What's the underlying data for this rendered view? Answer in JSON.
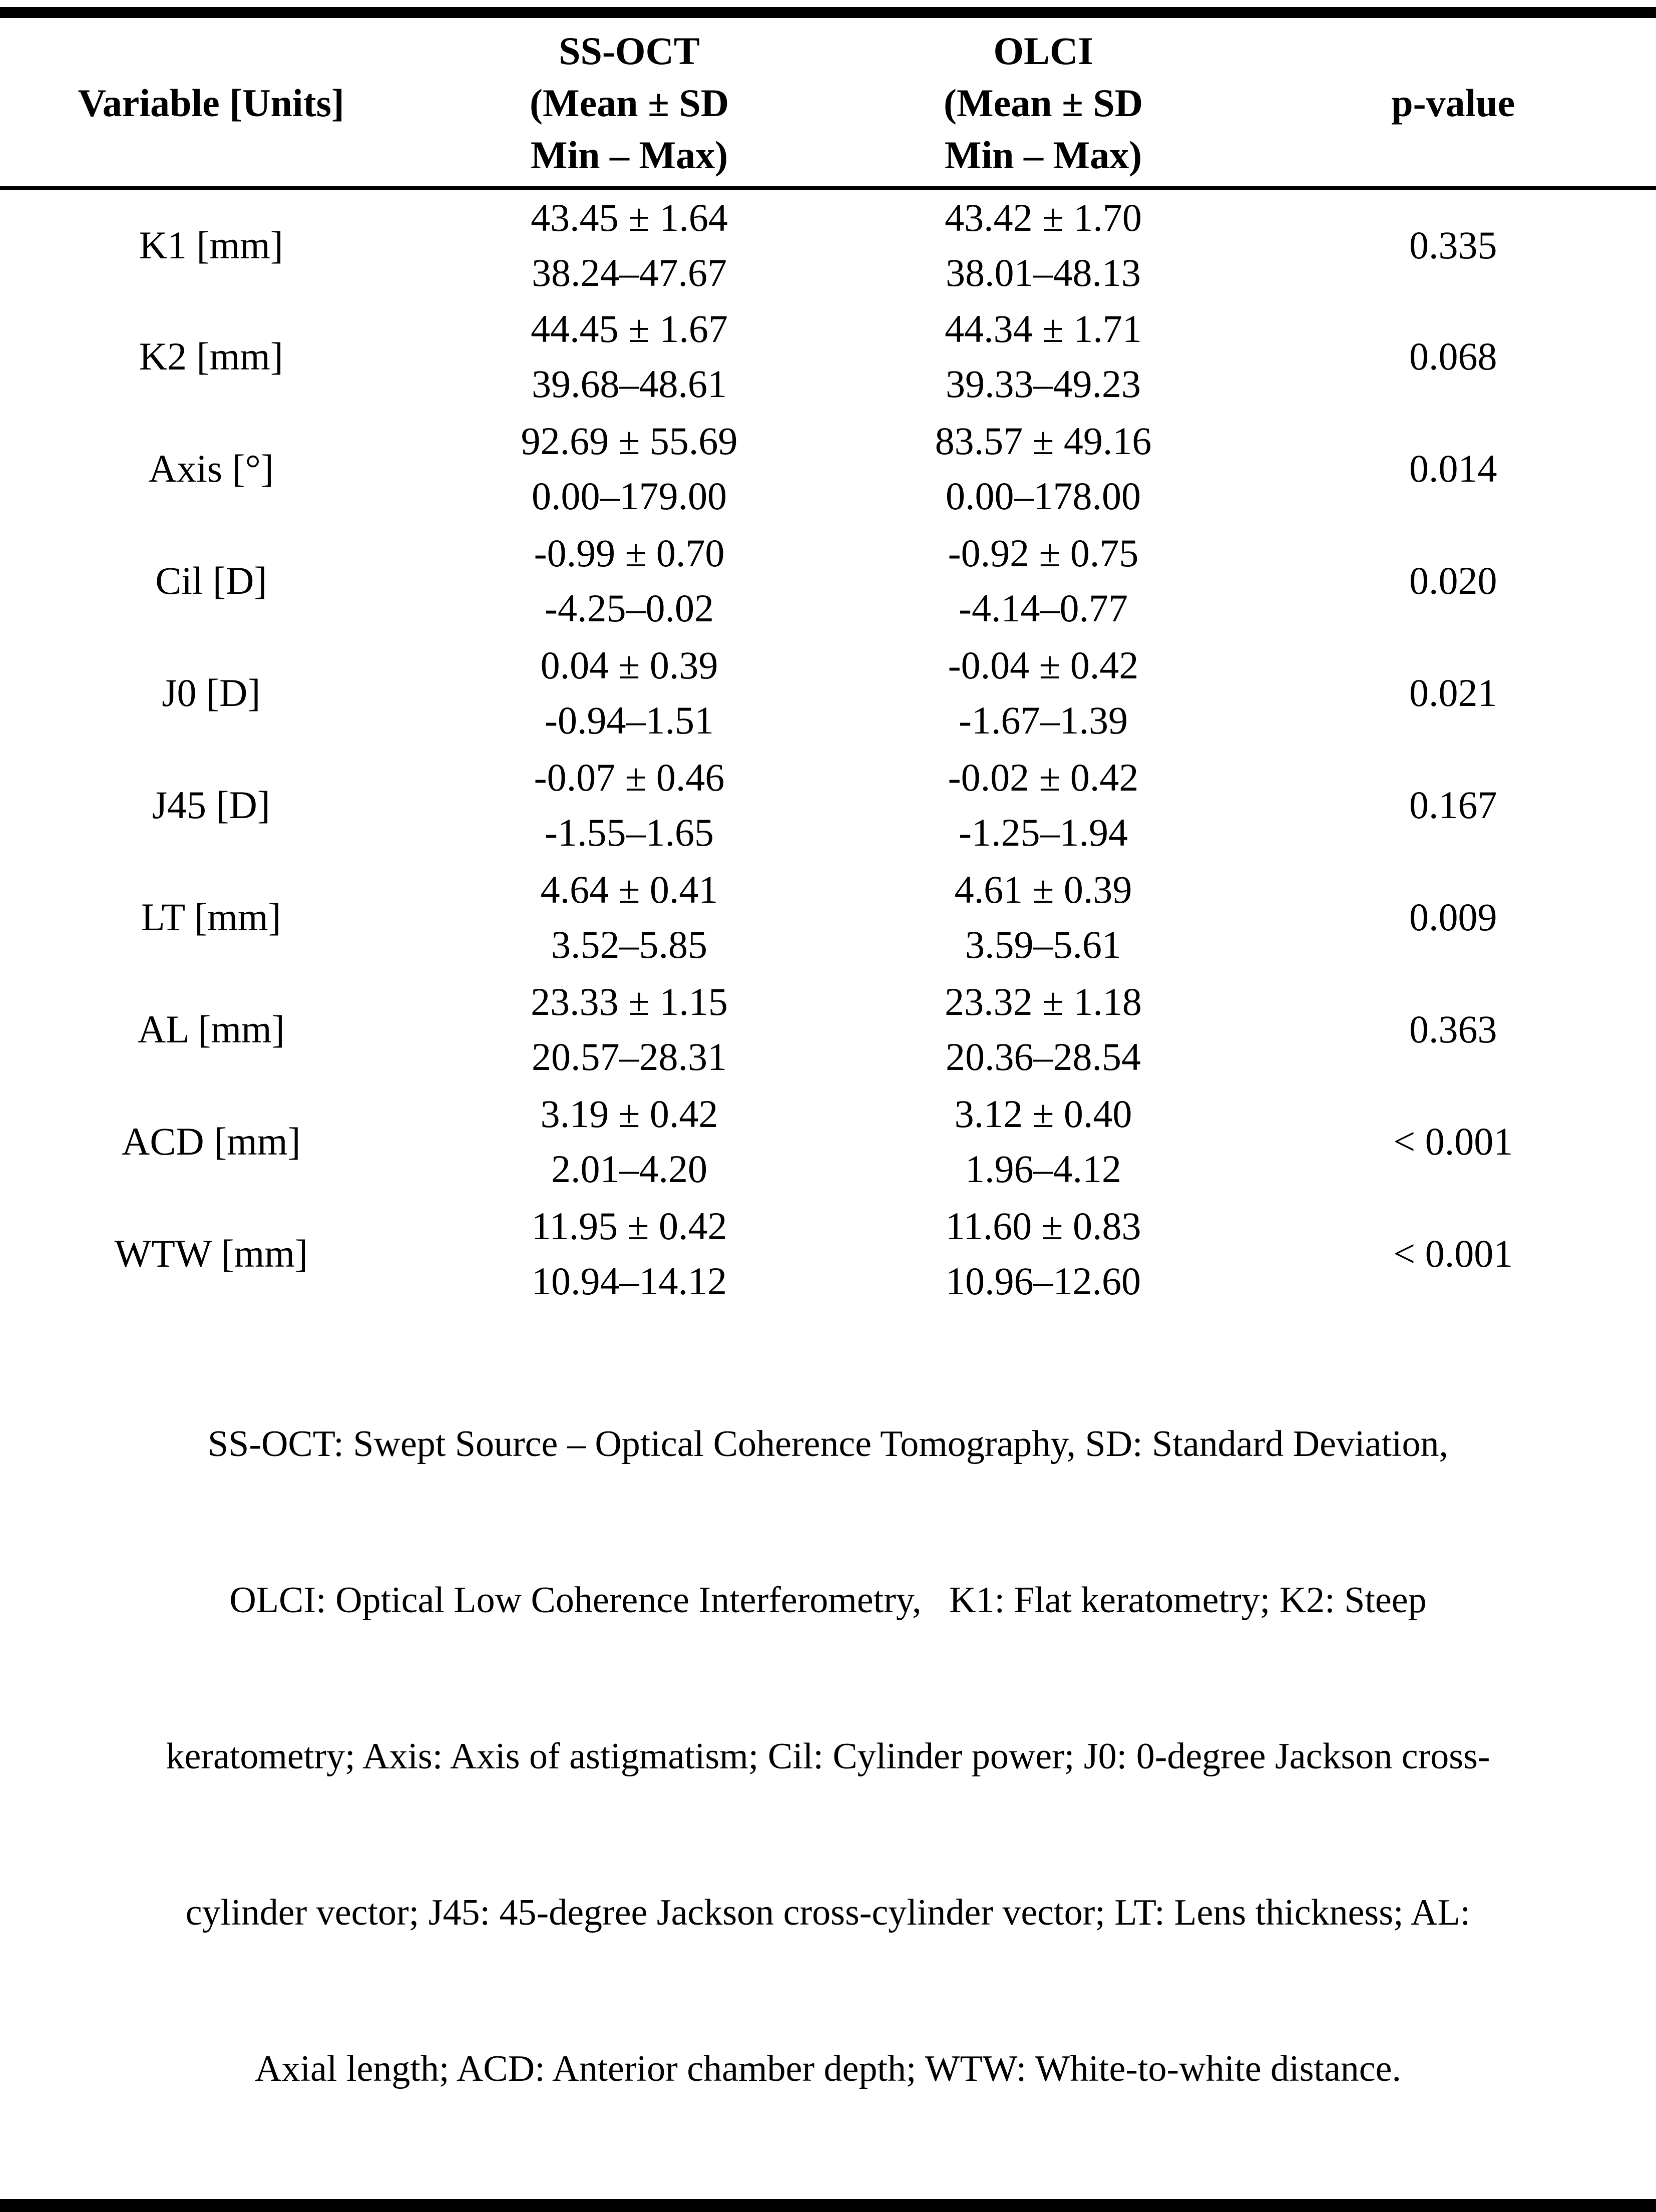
{
  "table": {
    "headers": {
      "variable": "Variable [Units]",
      "ss_oct_lines": [
        "SS-OCT",
        "(Mean ± SD",
        "Min – Max)"
      ],
      "olci_lines": [
        "OLCI",
        "(Mean ± SD",
        "Min – Max)"
      ],
      "p_value": "p-value"
    },
    "rows": [
      {
        "variable": "K1 [mm]",
        "ssoct_mean": "43.45 ± 1.64",
        "ssoct_range": "38.24–47.67",
        "olci_mean": "43.42 ± 1.70",
        "olci_range": "38.01–48.13",
        "p": "0.335"
      },
      {
        "variable": "K2 [mm]",
        "ssoct_mean": "44.45 ± 1.67",
        "ssoct_range": "39.68–48.61",
        "olci_mean": "44.34 ± 1.71",
        "olci_range": "39.33–49.23",
        "p": "0.068"
      },
      {
        "variable": "Axis [°]",
        "ssoct_mean": "92.69 ± 55.69",
        "ssoct_range": "0.00–179.00",
        "olci_mean": "83.57 ± 49.16",
        "olci_range": "0.00–178.00",
        "p": "0.014"
      },
      {
        "variable": "Cil [D]",
        "ssoct_mean": "-0.99 ± 0.70",
        "ssoct_range": "-4.25–0.02",
        "olci_mean": "-0.92 ± 0.75",
        "olci_range": "-4.14–0.77",
        "p": "0.020"
      },
      {
        "variable": "J0 [D]",
        "ssoct_mean": "0.04 ± 0.39",
        "ssoct_range": "-0.94–1.51",
        "olci_mean": "-0.04 ± 0.42",
        "olci_range": "-1.67–1.39",
        "p": "0.021"
      },
      {
        "variable": "J45 [D]",
        "ssoct_mean": "-0.07 ± 0.46",
        "ssoct_range": "-1.55–1.65",
        "olci_mean": "-0.02 ± 0.42",
        "olci_range": "-1.25–1.94",
        "p": "0.167"
      },
      {
        "variable": "LT [mm]",
        "ssoct_mean": "4.64 ± 0.41",
        "ssoct_range": "3.52–5.85",
        "olci_mean": "4.61 ± 0.39",
        "olci_range": "3.59–5.61",
        "p": "0.009"
      },
      {
        "variable": "AL [mm]",
        "ssoct_mean": "23.33 ± 1.15",
        "ssoct_range": "20.57–28.31",
        "olci_mean": "23.32 ± 1.18",
        "olci_range": "20.36–28.54",
        "p": "0.363"
      },
      {
        "variable": "ACD [mm]",
        "ssoct_mean": "3.19 ± 0.42",
        "ssoct_range": "2.01–4.20",
        "olci_mean": "3.12 ± 0.40",
        "olci_range": "1.96–4.12",
        "p": "< 0.001"
      },
      {
        "variable": "WTW [mm]",
        "ssoct_mean": "11.95 ± 0.42",
        "ssoct_range": "10.94–14.12",
        "olci_mean": "11.60 ± 0.83",
        "olci_range": "10.96–12.60",
        "p": "< 0.001"
      }
    ],
    "footnote_lines": [
      "SS-OCT: Swept Source – Optical Coherence Tomography, SD: Standard Deviation,",
      "OLCI: Optical Low Coherence Interferometry,   K1: Flat keratometry; K2: Steep",
      "keratometry; Axis: Axis of astigmatism; Cil: Cylinder power; J0: 0-degree Jackson cross-",
      "cylinder vector; J45: 45-degree Jackson cross-cylinder vector; LT: Lens thickness; AL:",
      "Axial length; ACD: Anterior chamber depth; WTW: White-to-white distance."
    ]
  }
}
